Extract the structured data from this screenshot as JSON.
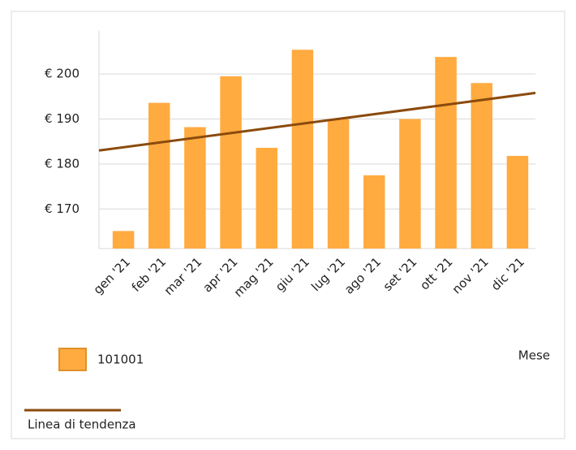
{
  "chart_data": {
    "type": "bar",
    "x_label": "Mese",
    "categories": [
      "gen '21",
      "feb '21",
      "mar '21",
      "apr '21",
      "mag '21",
      "giu '21",
      "lug '21",
      "ago '21",
      "set '21",
      "ott '21",
      "nov '21",
      "dic '21"
    ],
    "series": [
      {
        "name": "101001",
        "color": "#ffab40",
        "values": [
          165.1,
          193.6,
          188.2,
          199.5,
          183.6,
          205.4,
          190.0,
          177.5,
          190.0,
          203.8,
          198.0,
          181.8
        ]
      }
    ],
    "trend": {
      "name": "Linea di tendenza",
      "color": "#8b4a0c",
      "values": [
        183.0,
        195.8
      ]
    },
    "ylim": [
      161.2,
      209.6
    ],
    "yticks": [
      {
        "value": 170,
        "label": "€ 170"
      },
      {
        "value": 180,
        "label": "€ 180"
      },
      {
        "value": 190,
        "label": "€ 190"
      },
      {
        "value": 200,
        "label": "€ 200"
      }
    ],
    "grid": true
  }
}
